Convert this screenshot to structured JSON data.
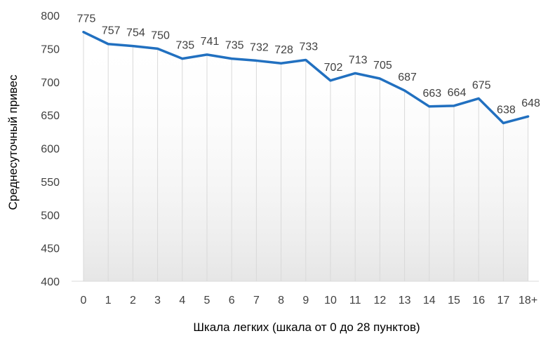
{
  "chart_data": {
    "type": "line",
    "title": "",
    "xlabel": "Шкала легких (шкала от 0 до 28 пунктов)",
    "ylabel": "Среднесуточный привес",
    "categories": [
      "0",
      "1",
      "2",
      "3",
      "4",
      "5",
      "6",
      "7",
      "8",
      "9",
      "10",
      "11",
      "12",
      "13",
      "14",
      "15",
      "16",
      "17",
      "18+"
    ],
    "series": [
      {
        "values": [
          775,
          757,
          754,
          750,
          735,
          741,
          735,
          732,
          728,
          733,
          702,
          713,
          705,
          687,
          663,
          664,
          675,
          638,
          648
        ]
      }
    ],
    "y_ticks": [
      400,
      450,
      500,
      550,
      600,
      650,
      700,
      750,
      800
    ],
    "ylim": [
      400,
      800
    ],
    "grid": "vertical",
    "legend": "none",
    "colors": {
      "line": "#2170c0",
      "area_fill": "#ebebeb",
      "grid": "#d9d9d9",
      "text": "#404040",
      "label_text": "#404040",
      "axis_title": "#000000"
    }
  }
}
